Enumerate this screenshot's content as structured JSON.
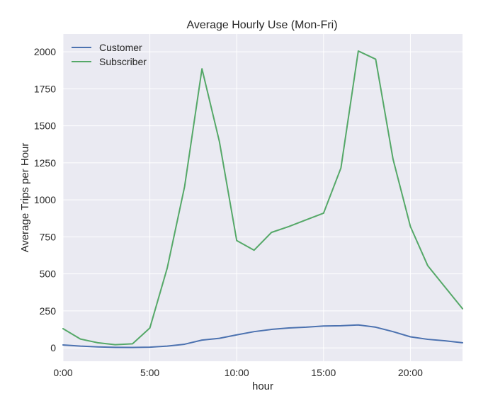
{
  "chart_data": {
    "type": "line",
    "title": "Average Hourly Use (Mon-Fri)",
    "xlabel": "hour",
    "ylabel": "Average Trips per Hour",
    "x": [
      0,
      1,
      2,
      3,
      4,
      5,
      6,
      7,
      8,
      9,
      10,
      11,
      12,
      13,
      14,
      15,
      16,
      17,
      18,
      19,
      20,
      21,
      22,
      23
    ],
    "xlim": [
      0,
      23
    ],
    "ylim": [
      -90,
      2120
    ],
    "x_ticks": [
      0,
      5,
      10,
      15,
      20
    ],
    "x_tick_labels": [
      "0:00",
      "5:00",
      "10:00",
      "15:00",
      "20:00"
    ],
    "y_ticks": [
      0,
      250,
      500,
      750,
      1000,
      1250,
      1500,
      1750,
      2000
    ],
    "y_tick_labels": [
      "0",
      "250",
      "500",
      "750",
      "1000",
      "1250",
      "1500",
      "1750",
      "2000"
    ],
    "grid": true,
    "legend_position": "top-left",
    "series": [
      {
        "name": "Customer",
        "color": "#4c72b0",
        "values": [
          20,
          12,
          7,
          4,
          3,
          5,
          12,
          25,
          53,
          65,
          88,
          110,
          125,
          135,
          140,
          148,
          150,
          155,
          140,
          110,
          75,
          58,
          48,
          35
        ]
      },
      {
        "name": "Subscriber",
        "color": "#55a868",
        "values": [
          130,
          60,
          35,
          22,
          28,
          135,
          540,
          1090,
          1885,
          1395,
          725,
          660,
          780,
          820,
          865,
          910,
          1215,
          2005,
          1950,
          1275,
          820,
          555,
          410,
          265
        ]
      }
    ],
    "colors": {
      "plot_background": "#eaeaf2",
      "grid": "#ffffff",
      "text": "#262626"
    }
  }
}
